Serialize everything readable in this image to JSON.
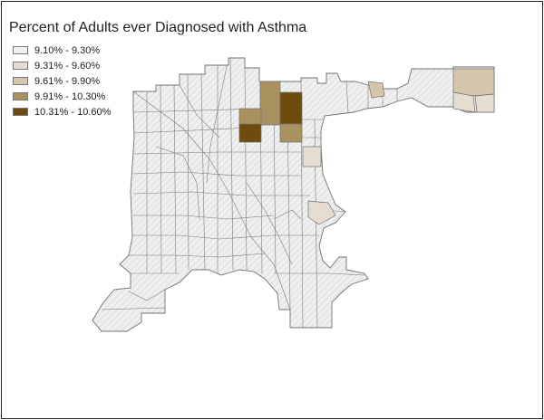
{
  "map": {
    "title": "Percent of Adults ever Diagnosed with Asthma",
    "legend": [
      {
        "label": "9.10% - 9.30%",
        "color": "#f4f2ef"
      },
      {
        "label": "9.31% - 9.60%",
        "color": "#e6ddd1"
      },
      {
        "label": "9.61% - 9.90%",
        "color": "#d3c6ad"
      },
      {
        "label": "9.91% - 10.30%",
        "color": "#a9925f"
      },
      {
        "label": "10.31% - 10.60%",
        "color": "#6e4c0e"
      }
    ],
    "colors": {
      "base_fill": "#efefef",
      "hatch_line": "#d2d2d2",
      "boundary": "#707070",
      "frame": "#222222"
    }
  }
}
